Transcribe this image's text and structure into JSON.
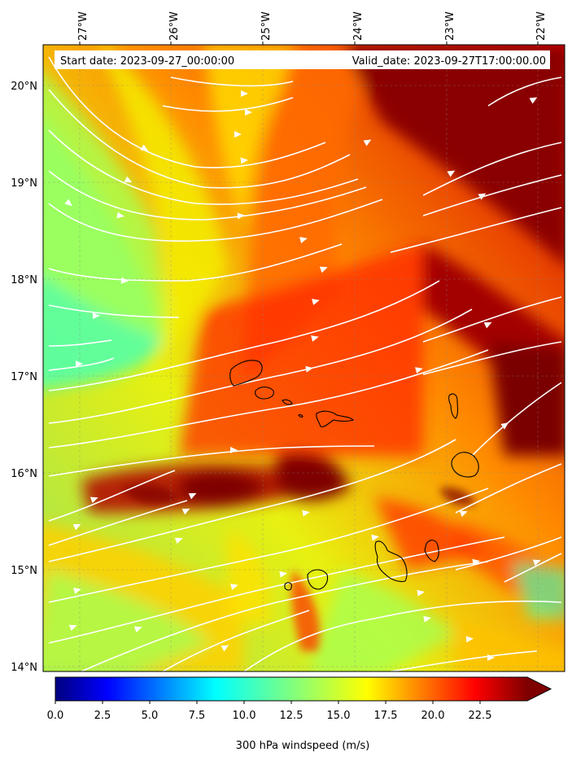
{
  "map": {
    "start_date": "Start date: 2023-09-27_00:00:00",
    "valid_date": "Valid_date: 2023-09-27T17:00:00.00",
    "lon_ticks": [
      "27°W",
      "26°W",
      "25°W",
      "24°W",
      "23°W",
      "22°W"
    ],
    "lat_ticks": [
      "20°N",
      "19°N",
      "18°N",
      "17°N",
      "16°N",
      "15°N",
      "14°N"
    ],
    "features": [
      "wind-speed-filled-contours",
      "white-streamlines",
      "island-coastlines",
      "dashed-graticule"
    ]
  },
  "colorbar": {
    "ticks": [
      "0.0",
      "2.5",
      "5.0",
      "7.5",
      "10.0",
      "12.5",
      "15.0",
      "17.5",
      "20.0",
      "22.5"
    ],
    "label": "300 hPa windspeed (m/s)",
    "range": [
      0,
      25
    ],
    "colormap": "jet",
    "extend": "max"
  },
  "colors": {
    "streamline": "#ffffff",
    "coastline": "#000000",
    "low_wind": "#00007f",
    "high_wind": "#7f0000"
  }
}
